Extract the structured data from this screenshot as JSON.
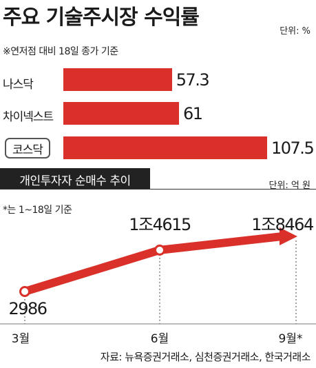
{
  "title": "주요 기술주시장 수익률",
  "unit_top": "단위: %",
  "note_top": "※연저점 대비 18일 종가 기준",
  "bar_chart": {
    "type": "bar",
    "categories": [
      "나스닥",
      "차이넥스트",
      "코스닥"
    ],
    "values": [
      57.3,
      61,
      107.5
    ],
    "value_labels": [
      "57.3",
      "61",
      "107.5"
    ],
    "highlighted": "코스닥",
    "color": "#d9312a",
    "xlim": [
      0,
      107.5
    ]
  },
  "section_tab": "개인투자자 순매수 추이",
  "unit_bottom": "단위: 억 원",
  "note_bottom": "*는 1~18일 기준",
  "line_chart": {
    "type": "line",
    "x": [
      "3월",
      "6월",
      "9월*"
    ],
    "y": [
      2986,
      14615,
      18464
    ],
    "value_labels": [
      "2986",
      "1조4615",
      "1조8464"
    ],
    "color": "#d9312a"
  },
  "source": "자료: 뉴욕증권거래소, 심천증권거래소, 한국거래소"
}
